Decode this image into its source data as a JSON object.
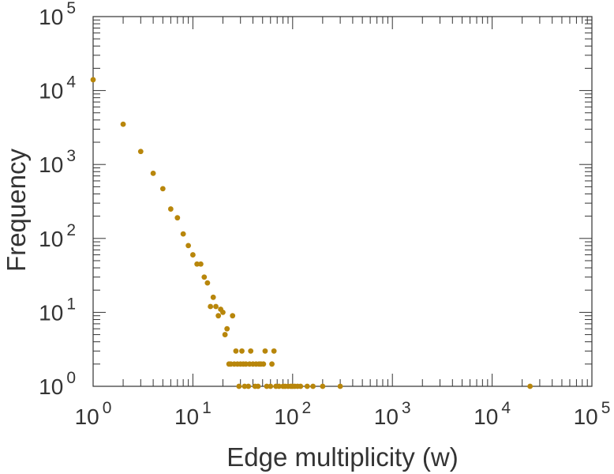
{
  "chart_data": {
    "type": "scatter",
    "x_scale": "log",
    "y_scale": "log",
    "xlabel": "Edge multiplicity (w)",
    "ylabel": "Frequency",
    "xlim": [
      1,
      100000
    ],
    "ylim": [
      1,
      100000
    ],
    "x_ticks": [
      {
        "base": "10",
        "exp": "0"
      },
      {
        "base": "10",
        "exp": "1"
      },
      {
        "base": "10",
        "exp": "2"
      },
      {
        "base": "10",
        "exp": "3"
      },
      {
        "base": "10",
        "exp": "4"
      },
      {
        "base": "10",
        "exp": "5"
      }
    ],
    "y_ticks": [
      {
        "base": "10",
        "exp": "0"
      },
      {
        "base": "10",
        "exp": "1"
      },
      {
        "base": "10",
        "exp": "2"
      },
      {
        "base": "10",
        "exp": "3"
      },
      {
        "base": "10",
        "exp": "4"
      },
      {
        "base": "10",
        "exp": "5"
      }
    ],
    "grid": false,
    "legend": "none",
    "marker_color": "#b8860b",
    "series": [
      {
        "points": [
          [
            1,
            14000
          ],
          [
            2,
            3500
          ],
          [
            3,
            1500
          ],
          [
            4,
            760
          ],
          [
            5,
            470
          ],
          [
            6,
            250
          ],
          [
            7,
            190
          ],
          [
            8,
            115
          ],
          [
            9,
            80
          ],
          [
            10,
            60
          ],
          [
            11,
            45
          ],
          [
            12,
            45
          ],
          [
            13,
            30
          ],
          [
            14,
            25
          ],
          [
            15,
            12
          ],
          [
            16,
            16
          ],
          [
            17,
            12
          ],
          [
            18,
            9
          ],
          [
            19,
            11
          ],
          [
            20,
            10
          ],
          [
            21,
            5
          ],
          [
            22,
            6
          ],
          [
            23,
            2
          ],
          [
            24,
            2
          ],
          [
            25,
            9
          ],
          [
            26,
            2
          ],
          [
            27,
            3
          ],
          [
            28,
            2
          ],
          [
            29,
            1
          ],
          [
            30,
            2
          ],
          [
            31,
            3
          ],
          [
            32,
            2
          ],
          [
            33,
            1
          ],
          [
            34,
            2
          ],
          [
            36,
            1
          ],
          [
            37,
            2
          ],
          [
            38,
            3
          ],
          [
            40,
            2
          ],
          [
            42,
            1
          ],
          [
            43,
            2
          ],
          [
            45,
            1
          ],
          [
            46,
            2
          ],
          [
            48,
            2
          ],
          [
            51,
            2
          ],
          [
            53,
            3
          ],
          [
            55,
            1
          ],
          [
            60,
            1
          ],
          [
            62,
            2
          ],
          [
            65,
            3
          ],
          [
            68,
            1
          ],
          [
            73,
            1
          ],
          [
            80,
            1
          ],
          [
            84,
            1
          ],
          [
            90,
            1
          ],
          [
            96,
            1
          ],
          [
            100,
            1
          ],
          [
            105,
            1
          ],
          [
            112,
            1
          ],
          [
            120,
            1
          ],
          [
            140,
            1
          ],
          [
            160,
            1
          ],
          [
            200,
            1
          ],
          [
            300,
            1
          ],
          [
            24000,
            1
          ]
        ]
      }
    ]
  }
}
